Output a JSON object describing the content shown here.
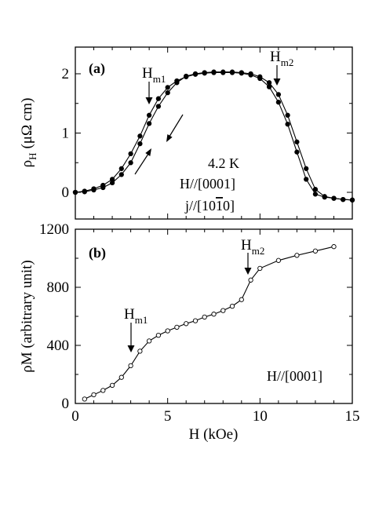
{
  "chart_data": [
    {
      "type": "line",
      "panel_label": "(a)",
      "ylabel_main": "ρ",
      "ylabel_sub": "H",
      "ylabel_unit": "(μΩ cm)",
      "xlim": [
        0,
        15
      ],
      "ylim": [
        -0.45,
        2.45
      ],
      "yticks": [
        0,
        1,
        2
      ],
      "xticks": [
        0,
        5,
        10,
        15
      ],
      "grid": false,
      "annotations": {
        "temperature": "4.2 K",
        "field_dir": "H//[0001]",
        "current_dir_prefix": "j//[10",
        "current_dir_bar": "1",
        "current_dir_suffix": "0]",
        "hm1_main": "H",
        "hm1_sub": "m1",
        "hm2_main": "H",
        "hm2_sub": "m2"
      },
      "series": [
        {
          "name": "",
          "direction": "increasing field",
          "x": [
            0,
            0.5,
            1,
            1.5,
            2,
            2.5,
            3,
            3.5,
            4,
            4.5,
            5,
            5.5,
            6,
            6.5,
            7,
            7.5,
            8,
            8.5,
            9,
            9.5,
            10,
            10.5,
            11,
            11.5,
            12,
            12.5,
            13,
            13.5,
            14,
            14.5,
            15
          ],
          "y": [
            0.0,
            0.01,
            0.04,
            0.08,
            0.16,
            0.3,
            0.5,
            0.82,
            1.16,
            1.45,
            1.68,
            1.85,
            1.96,
            2.0,
            2.02,
            2.03,
            2.03,
            2.03,
            2.02,
            2.0,
            1.95,
            1.85,
            1.65,
            1.3,
            0.85,
            0.4,
            0.05,
            -0.07,
            -0.1,
            -0.12,
            -0.13
          ]
        },
        {
          "name": "",
          "direction": "decreasing field",
          "x": [
            15,
            14.5,
            14,
            13.5,
            13,
            12.5,
            12,
            11.5,
            11,
            10.5,
            10,
            9.5,
            9,
            8.5,
            8,
            7.5,
            7,
            6.5,
            6,
            5.5,
            5,
            4.5,
            4,
            3.5,
            3,
            2.5,
            2,
            1.5,
            1,
            0.5,
            0
          ],
          "y": [
            -0.13,
            -0.12,
            -0.1,
            -0.08,
            -0.03,
            0.22,
            0.68,
            1.15,
            1.52,
            1.78,
            1.92,
            1.98,
            2.01,
            2.02,
            2.02,
            2.02,
            2.01,
            1.99,
            1.95,
            1.88,
            1.77,
            1.58,
            1.3,
            0.95,
            0.65,
            0.4,
            0.22,
            0.12,
            0.06,
            0.02,
            0.0
          ]
        }
      ]
    },
    {
      "type": "line",
      "panel_label": "(b)",
      "xlabel": "H (kOe)",
      "ylabel": "ρM (arbitrary unit)",
      "xlim": [
        0,
        15
      ],
      "ylim": [
        0,
        1200
      ],
      "yticks": [
        0,
        400,
        800,
        1200
      ],
      "xticks": [
        0,
        5,
        10,
        15
      ],
      "grid": false,
      "annotations": {
        "field_dir": "H//[0001]",
        "hm1_main": "H",
        "hm1_sub": "m1",
        "hm2_main": "H",
        "hm2_sub": "m2"
      },
      "series": [
        {
          "name": "",
          "x": [
            0.5,
            1,
            1.5,
            2,
            2.5,
            3,
            3.5,
            4,
            4.5,
            5,
            5.5,
            6,
            6.5,
            7,
            7.5,
            8,
            8.5,
            9,
            9.5,
            10,
            11,
            12,
            13,
            14
          ],
          "y": [
            30,
            60,
            90,
            125,
            180,
            260,
            360,
            430,
            470,
            500,
            525,
            550,
            570,
            595,
            615,
            640,
            670,
            715,
            850,
            930,
            985,
            1020,
            1050,
            1080
          ]
        }
      ]
    }
  ]
}
